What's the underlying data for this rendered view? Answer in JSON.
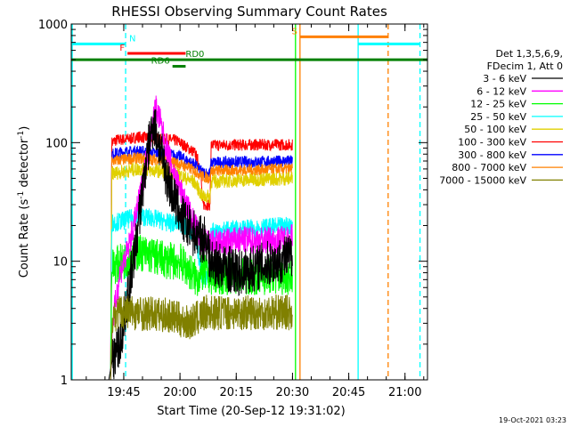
{
  "chart_data": {
    "type": "line",
    "title": "RHESSI Observing Summary Count Rates",
    "xlabel": "Start Time (20-Sep-12 19:31:02)",
    "ylabel_main": "Count Rate (s",
    "ylabel_sup1": "-1",
    "ylabel_mid": " detector",
    "ylabel_sup2": "-1",
    "ylabel_end": ")",
    "yscale": "log",
    "ylim": [
      1,
      1000
    ],
    "xlim_minutes": [
      0,
      95
    ],
    "x_ticks": [
      {
        "m": 14,
        "label": "19:45"
      },
      {
        "m": 29,
        "label": "20:00"
      },
      {
        "m": 44,
        "label": "20:15"
      },
      {
        "m": 59,
        "label": "20:30"
      },
      {
        "m": 74,
        "label": "20:45"
      },
      {
        "m": 89,
        "label": "21:00"
      }
    ],
    "y_ticks": [
      {
        "v": 1,
        "label": "1"
      },
      {
        "v": 10,
        "label": "10"
      },
      {
        "v": 100,
        "label": "100"
      },
      {
        "v": 1000,
        "label": "1000"
      }
    ],
    "legend": {
      "header": [
        "Det 1,3,5,6,9,",
        "FDecim 1, Att 0"
      ],
      "entries": [
        {
          "label": "3 - 6 keV",
          "color": "#000000"
        },
        {
          "label": "6 - 12 keV",
          "color": "#ff00ff"
        },
        {
          "label": "12 - 25 keV",
          "color": "#00ff00"
        },
        {
          "label": "25 - 50 keV",
          "color": "#00ffff"
        },
        {
          "label": "50 - 100 keV",
          "color": "#e0d000"
        },
        {
          "label": "100 - 300 keV",
          "color": "#ff0000"
        },
        {
          "label": "300 - 800 keV",
          "color": "#0000ff"
        },
        {
          "label": "800 - 7000 keV",
          "color": "#ff8000"
        },
        {
          "label": "7000 - 15000 keV",
          "color": "#808000"
        }
      ]
    },
    "series": [
      {
        "color": "#ff0000",
        "noise": 0.05,
        "points": [
          [
            10.5,
            1
          ],
          [
            10.8,
            100
          ],
          [
            12,
            105
          ],
          [
            16,
            108
          ],
          [
            18,
            112
          ],
          [
            22,
            108
          ],
          [
            26,
            106
          ],
          [
            28,
            104
          ],
          [
            29,
            100
          ],
          [
            33,
            82
          ],
          [
            34.5,
            60
          ],
          [
            35,
            30
          ],
          [
            37,
            30
          ],
          [
            37.3,
            95
          ],
          [
            50,
            96
          ],
          [
            59,
            96
          ],
          [
            59.5,
            null
          ]
        ]
      },
      {
        "color": "#0000ff",
        "noise": 0.05,
        "points": [
          [
            10.5,
            1
          ],
          [
            10.8,
            80
          ],
          [
            14,
            83
          ],
          [
            18,
            85
          ],
          [
            22,
            82
          ],
          [
            26,
            80
          ],
          [
            29,
            76
          ],
          [
            33,
            65
          ],
          [
            35,
            56
          ],
          [
            37,
            55
          ],
          [
            37.3,
            68
          ],
          [
            50,
            69
          ],
          [
            59,
            70
          ],
          [
            59.5,
            null
          ]
        ]
      },
      {
        "color": "#ff8000",
        "noise": 0.05,
        "points": [
          [
            10.5,
            1
          ],
          [
            10.8,
            70
          ],
          [
            14,
            72
          ],
          [
            18,
            74
          ],
          [
            22,
            72
          ],
          [
            26,
            70
          ],
          [
            29,
            66
          ],
          [
            33,
            58
          ],
          [
            35,
            52
          ],
          [
            37,
            50
          ],
          [
            37.3,
            58
          ],
          [
            50,
            59
          ],
          [
            59,
            60
          ],
          [
            59.5,
            null
          ]
        ]
      },
      {
        "color": "#e0d000",
        "noise": 0.06,
        "points": [
          [
            10.5,
            1
          ],
          [
            10.8,
            55
          ],
          [
            14,
            57
          ],
          [
            18,
            60
          ],
          [
            22,
            58
          ],
          [
            26,
            57
          ],
          [
            29,
            53
          ],
          [
            33,
            46
          ],
          [
            35,
            35
          ],
          [
            37,
            35
          ],
          [
            37.3,
            47
          ],
          [
            50,
            49
          ],
          [
            59,
            50
          ],
          [
            59.5,
            null
          ]
        ]
      },
      {
        "color": "#00ffff",
        "noise": 0.08,
        "points": [
          [
            10.5,
            1
          ],
          [
            10.8,
            21
          ],
          [
            14,
            22
          ],
          [
            18,
            24
          ],
          [
            22,
            23
          ],
          [
            26,
            21
          ],
          [
            29,
            21
          ],
          [
            33,
            17
          ],
          [
            35,
            7
          ],
          [
            36.5,
            7
          ],
          [
            37.3,
            18
          ],
          [
            50,
            19
          ],
          [
            59,
            20
          ],
          [
            59.5,
            null
          ]
        ]
      },
      {
        "color": "#00ff00",
        "noise": 0.16,
        "points": [
          [
            10.5,
            1
          ],
          [
            10.8,
            9
          ],
          [
            14,
            10
          ],
          [
            18,
            12
          ],
          [
            22,
            11
          ],
          [
            26,
            10
          ],
          [
            29,
            10
          ],
          [
            32,
            8
          ],
          [
            33.5,
            7
          ],
          [
            35,
            8
          ],
          [
            37.3,
            7.5
          ],
          [
            50,
            7.5
          ],
          [
            59,
            7.5
          ],
          [
            59.5,
            null
          ]
        ]
      },
      {
        "color": "#ff00ff",
        "noise": 0.12,
        "points": [
          [
            10.5,
            1
          ],
          [
            11,
            3
          ],
          [
            13,
            8
          ],
          [
            15,
            12
          ],
          [
            17,
            22
          ],
          [
            19,
            45
          ],
          [
            21,
            110
          ],
          [
            22.5,
            200
          ],
          [
            23.5,
            160
          ],
          [
            25,
            100
          ],
          [
            27,
            60
          ],
          [
            29,
            40
          ],
          [
            31,
            28
          ],
          [
            33,
            20
          ],
          [
            35,
            15
          ],
          [
            37,
            14
          ],
          [
            45,
            15
          ],
          [
            55,
            15
          ],
          [
            59,
            16
          ],
          [
            59.5,
            null
          ]
        ]
      },
      {
        "color": "#000000",
        "noise": 0.2,
        "points": [
          [
            10,
            1
          ],
          [
            11,
            1.5
          ],
          [
            13,
            2
          ],
          [
            14,
            3
          ],
          [
            15,
            5
          ],
          [
            17,
            12
          ],
          [
            19,
            40
          ],
          [
            21,
            110
          ],
          [
            22,
            150
          ],
          [
            24,
            80
          ],
          [
            26,
            45
          ],
          [
            28,
            30
          ],
          [
            30,
            22
          ],
          [
            32,
            18
          ],
          [
            35,
            15
          ],
          [
            36,
            16
          ],
          [
            37,
            10
          ],
          [
            40,
            9
          ],
          [
            45,
            8
          ],
          [
            50,
            9
          ],
          [
            55,
            10
          ],
          [
            59,
            11
          ],
          [
            59.5,
            null
          ]
        ]
      },
      {
        "color": "#808000",
        "noise": 0.15,
        "points": [
          [
            10.5,
            1
          ],
          [
            11,
            3.5
          ],
          [
            14,
            3.8
          ],
          [
            20,
            3.6
          ],
          [
            26,
            3.5
          ],
          [
            29,
            3.2
          ],
          [
            31,
            3.0
          ],
          [
            33,
            3.2
          ],
          [
            36,
            3.7
          ],
          [
            45,
            3.7
          ],
          [
            59,
            3.7
          ],
          [
            59.5,
            null
          ]
        ]
      }
    ],
    "vlines": [
      {
        "m": 14.5,
        "color": "#00ffff",
        "dash": true
      },
      {
        "m": 59.8,
        "color": "#00ff00",
        "dash": false
      },
      {
        "m": 61,
        "color": "#ff8000",
        "dash": false
      },
      {
        "m": 76.5,
        "color": "#00ffff",
        "dash": false
      },
      {
        "m": 84.5,
        "color": "#ff8000",
        "dash": true
      },
      {
        "m": 93,
        "color": "#00ffff",
        "dash": true
      }
    ],
    "flags": [
      {
        "label": "N",
        "color": "#00ffff",
        "start": 0,
        "end": 14.5,
        "level": 680
      },
      {
        "label": "N",
        "color": "#00ffff",
        "start": 76.5,
        "end": 93,
        "level": 680,
        "no_label": true
      },
      {
        "label": "S",
        "color": "#ff8000",
        "start": 61,
        "end": 84.5,
        "level": 780,
        "label_side": "left"
      },
      {
        "label": "F",
        "color": "#ff0000",
        "start": 15,
        "end": 30.5,
        "level": 565,
        "label_side": "left"
      },
      {
        "label": "RD0",
        "color": "#008000",
        "start": 0,
        "end": 95,
        "level": 500,
        "label_at": 30.5
      },
      {
        "label": "RD6",
        "color": "#008000",
        "start": 27,
        "end": 30.5,
        "level": 440,
        "label_side": "left"
      }
    ],
    "footer_date": "19-Oct-2021 03:23"
  }
}
